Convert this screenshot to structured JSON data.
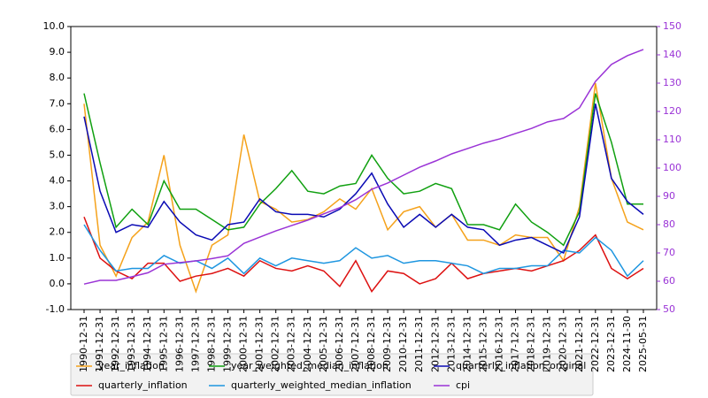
{
  "chart_data": {
    "type": "line",
    "categories": [
      "1990-12-31",
      "1991-12-31",
      "1992-12-31",
      "1993-12-31",
      "1994-12-31",
      "1995-12-31",
      "1996-12-31",
      "1997-12-31",
      "1998-12-31",
      "1999-12-31",
      "2000-12-31",
      "2001-12-31",
      "2002-12-31",
      "2003-12-31",
      "2004-12-31",
      "2005-12-31",
      "2006-12-31",
      "2007-12-31",
      "2008-12-31",
      "2009-12-31",
      "2010-12-31",
      "2011-12-31",
      "2012-12-31",
      "2013-12-31",
      "2014-12-31",
      "2015-12-31",
      "2016-12-31",
      "2017-12-31",
      "2018-12-31",
      "2019-12-31",
      "2020-12-31",
      "2021-12-31",
      "2022-12-31",
      "2023-12-31",
      "2024-11-30",
      "2025-05-31"
    ],
    "series": [
      {
        "name": "year_inflation",
        "color": "#f5a21b",
        "values": [
          7.0,
          1.5,
          0.3,
          1.8,
          2.4,
          5.0,
          1.5,
          -0.3,
          1.5,
          1.9,
          5.8,
          3.2,
          2.9,
          2.4,
          2.5,
          2.8,
          3.3,
          2.9,
          3.7,
          2.1,
          2.8,
          3.0,
          2.2,
          2.7,
          1.7,
          1.7,
          1.5,
          1.9,
          1.8,
          1.8,
          0.9,
          3.0,
          7.8,
          4.1,
          2.4,
          2.1
        ]
      },
      {
        "name": "quarterly_inflation",
        "color": "#dd1111",
        "values": [
          2.6,
          1.0,
          0.5,
          0.2,
          0.8,
          0.8,
          0.1,
          0.3,
          0.4,
          0.6,
          0.3,
          0.9,
          0.6,
          0.5,
          0.7,
          0.5,
          -0.1,
          0.9,
          -0.3,
          0.5,
          0.4,
          0.0,
          0.2,
          0.8,
          0.2,
          0.4,
          0.5,
          0.6,
          0.5,
          0.7,
          0.9,
          1.3,
          1.9,
          0.6,
          0.2,
          0.6
        ]
      },
      {
        "name": "year_weighted_median_inflation",
        "color": "#10a010",
        "values": [
          7.4,
          4.7,
          2.2,
          2.9,
          2.3,
          4.0,
          2.9,
          2.9,
          2.5,
          2.1,
          2.2,
          3.1,
          3.7,
          4.4,
          3.6,
          3.5,
          3.8,
          3.9,
          5.0,
          4.1,
          3.5,
          3.6,
          3.9,
          3.7,
          2.3,
          2.3,
          2.1,
          3.1,
          2.4,
          2.0,
          1.5,
          2.8,
          7.4,
          5.5,
          3.1,
          3.1
        ]
      },
      {
        "name": "quarterly_weighted_median_inflation",
        "color": "#1e96e0",
        "values": [
          2.3,
          1.3,
          0.5,
          0.6,
          0.6,
          1.1,
          0.8,
          0.9,
          0.6,
          1.0,
          0.4,
          1.0,
          0.7,
          1.0,
          0.9,
          0.8,
          0.9,
          1.4,
          1.0,
          1.1,
          0.8,
          0.9,
          0.9,
          0.8,
          0.7,
          0.4,
          0.6,
          0.6,
          0.7,
          0.7,
          1.3,
          1.2,
          1.8,
          1.3,
          0.3,
          0.9
        ]
      },
      {
        "name": "quarterly_inflation_original",
        "color": "#0a0ab4",
        "values": [
          6.5,
          3.6,
          2.0,
          2.3,
          2.2,
          3.2,
          2.4,
          1.9,
          1.7,
          2.3,
          2.4,
          3.3,
          2.8,
          2.7,
          2.7,
          2.6,
          2.9,
          3.5,
          4.3,
          3.1,
          2.2,
          2.7,
          2.2,
          2.7,
          2.2,
          2.1,
          1.5,
          1.7,
          1.8,
          1.5,
          1.2,
          2.6,
          7.0,
          4.1,
          3.2,
          2.7
        ]
      },
      {
        "name": "cpi",
        "color": "#9a33d6",
        "axis": "y2",
        "values": [
          59,
          60.3,
          60.3,
          61.6,
          63,
          66,
          66.6,
          67.2,
          68,
          69,
          73.4,
          75.6,
          77.8,
          79.7,
          81.6,
          83.8,
          86,
          88.8,
          92.5,
          94.7,
          97.5,
          100.3,
          102.5,
          105,
          106.9,
          108.8,
          110.3,
          112.2,
          114,
          116.3,
          117.5,
          121.3,
          130.6,
          136.6,
          139.7,
          141.9
        ]
      }
    ],
    "ylim": [
      -1,
      10
    ],
    "yticks": [
      {
        "value": -1,
        "label": "-1.0"
      },
      {
        "value": 0,
        "label": "0.0"
      },
      {
        "value": 1,
        "label": "1.0"
      },
      {
        "value": 2,
        "label": "2.0"
      },
      {
        "value": 3,
        "label": "3.0"
      },
      {
        "value": 4,
        "label": "4.0"
      },
      {
        "value": 5,
        "label": "5.0"
      },
      {
        "value": 6,
        "label": "6.0"
      },
      {
        "value": 7,
        "label": "7.0"
      },
      {
        "value": 8,
        "label": "8.0"
      },
      {
        "value": 9,
        "label": "9.0"
      },
      {
        "value": 10,
        "label": "10.0"
      }
    ],
    "y2lim": [
      50,
      150
    ],
    "y2ticks": [
      50,
      60,
      70,
      80,
      90,
      100,
      110,
      120,
      130,
      140,
      150
    ],
    "y2color": "#9a33d6",
    "grid": false,
    "legend": "lower left"
  }
}
